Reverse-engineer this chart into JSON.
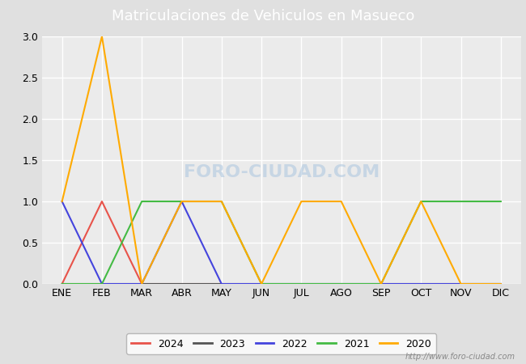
{
  "title": "Matriculaciones de Vehiculos en Masueco",
  "title_bg_color": "#4472c4",
  "title_text_color": "#ffffff",
  "months": [
    "ENE",
    "FEB",
    "MAR",
    "ABR",
    "MAY",
    "JUN",
    "JUL",
    "AGO",
    "SEP",
    "OCT",
    "NOV",
    "DIC"
  ],
  "series": {
    "2024": {
      "color": "#e8534a",
      "data": [
        0,
        1,
        0,
        0,
        0,
        null,
        null,
        null,
        null,
        null,
        null,
        null
      ]
    },
    "2023": {
      "color": "#555555",
      "data": [
        0,
        0,
        0,
        0,
        0,
        0,
        0,
        0,
        0,
        0,
        0,
        0
      ]
    },
    "2022": {
      "color": "#4444dd",
      "data": [
        1,
        0,
        0,
        1,
        0,
        0,
        0,
        0,
        0,
        0,
        0,
        0
      ]
    },
    "2021": {
      "color": "#44bb44",
      "data": [
        0,
        0,
        1,
        1,
        1,
        0,
        0,
        0,
        0,
        1,
        1,
        1
      ]
    },
    "2020": {
      "color": "#ffaa00",
      "data": [
        1,
        3,
        0,
        1,
        1,
        0,
        1,
        1,
        0,
        1,
        0,
        0
      ]
    }
  },
  "ylim": [
    0.0,
    3.0
  ],
  "yticks": [
    0.0,
    0.5,
    1.0,
    1.5,
    2.0,
    2.5,
    3.0
  ],
  "plot_bg_color": "#ebebeb",
  "fig_bg_color": "#e0e0e0",
  "grid_color": "#ffffff",
  "watermark_plot": "FORO-CIUDAD.COM",
  "watermark_url": "http://www.foro-ciudad.com",
  "legend_years": [
    "2024",
    "2023",
    "2022",
    "2021",
    "2020"
  ],
  "linewidth": 1.5
}
